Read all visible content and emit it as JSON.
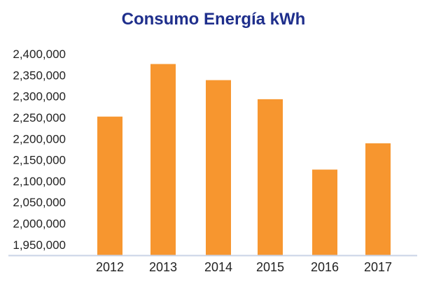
{
  "chart_data": {
    "type": "bar",
    "title": "Consumo Energía kWh",
    "categories": [
      "2012",
      "2013",
      "2014",
      "2015",
      "2016",
      "2017"
    ],
    "values": [
      2252000,
      2376000,
      2338000,
      2293000,
      2127000,
      2189000
    ],
    "ylim": [
      1925000,
      2400000
    ],
    "yticks": [
      1950000,
      2000000,
      2050000,
      2100000,
      2150000,
      2200000,
      2250000,
      2300000,
      2350000,
      2400000
    ],
    "ytick_labels": [
      "1,950,000",
      "2,000,000",
      "2,050,000",
      "2,100,000",
      "2,150,000",
      "2,200,000",
      "2,250,000",
      "2,300,000",
      "2,350,000",
      "2,400,000"
    ],
    "grid": false,
    "legend": "none",
    "colors": {
      "bar": "#f7962f",
      "axis": "#c9d3e6",
      "title": "#1f2f8c"
    }
  }
}
